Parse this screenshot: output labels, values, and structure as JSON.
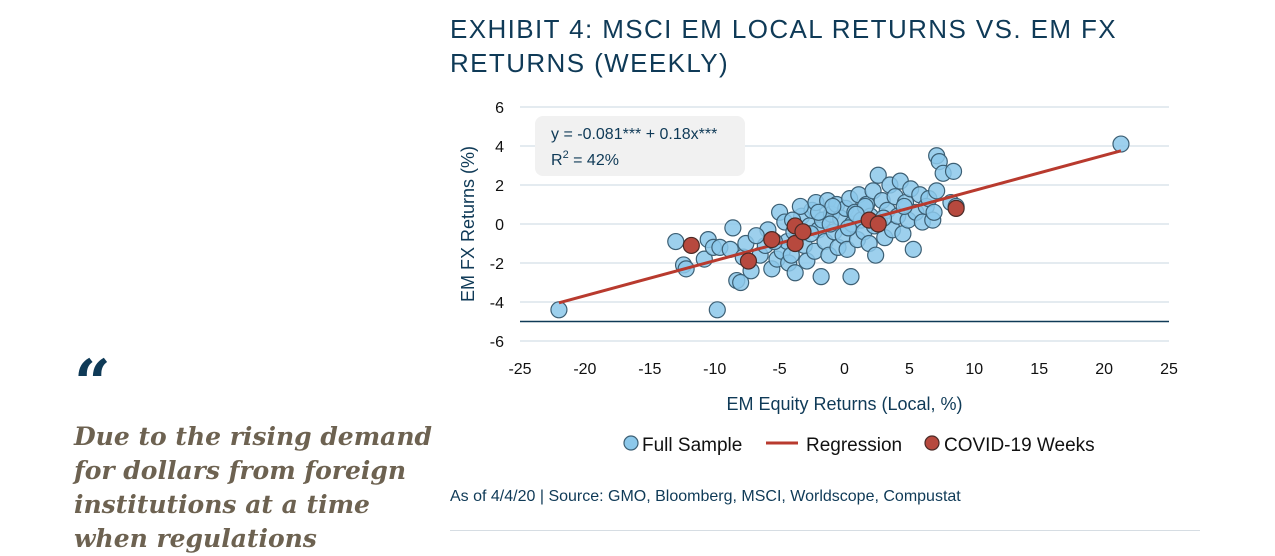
{
  "quote": {
    "mark": "“",
    "text": "Due to the rising demand for dollars from foreign institutions at a time when regulations"
  },
  "exhibit": {
    "title": "EXHIBIT 4: MSCI EM LOCAL RETURNS VS. EM FX RETURNS (WEEKLY)"
  },
  "source_note": "As of 4/4/20 | Source: GMO, Bloomberg, MSCI, Worldscope, Compustat",
  "chart_data": {
    "type": "scatter",
    "xlabel": "EM Equity Returns (Local, %)",
    "ylabel": "EM FX Returns (%)",
    "xlim": [
      -25,
      25
    ],
    "ylim": [
      -6,
      6
    ],
    "xticks": [
      -25,
      -20,
      -15,
      -10,
      -5,
      0,
      5,
      10,
      15,
      20,
      25
    ],
    "yticks": [
      -6,
      -4,
      -2,
      0,
      2,
      4,
      6
    ],
    "grid": "horizontal",
    "legend_position": "bottom",
    "annotation": {
      "equation": "y = -0.081*** + 0.18x***",
      "r2_prefix": "R",
      "r2_sup": "2",
      "r2_value": " = 42%"
    },
    "regression": {
      "intercept": -0.081,
      "slope": 0.18,
      "x_range": [
        -22,
        21.3
      ]
    },
    "series": [
      {
        "name": "Full Sample",
        "color": "#8cc8ea",
        "points": [
          [
            21.3,
            4.1
          ],
          [
            -22,
            -4.4
          ],
          [
            -9.8,
            -4.4
          ],
          [
            -13,
            -0.9
          ],
          [
            -12.4,
            -2.1
          ],
          [
            -12.2,
            -2.3
          ],
          [
            -10.8,
            -1.8
          ],
          [
            -10.5,
            -0.8
          ],
          [
            -10.1,
            -1.2
          ],
          [
            -9.6,
            -1.2
          ],
          [
            -8.8,
            -1.3
          ],
          [
            -8.6,
            -0.2
          ],
          [
            -8.3,
            -2.9
          ],
          [
            -8,
            -3
          ],
          [
            -7.8,
            -1.7
          ],
          [
            -7.6,
            -1.0
          ],
          [
            -7.2,
            -2.4
          ],
          [
            -6.5,
            -1.6
          ],
          [
            -6.1,
            -1.1
          ],
          [
            -5.9,
            -0.3
          ],
          [
            -5.6,
            -2.3
          ],
          [
            -5.2,
            -1.8
          ],
          [
            -5.0,
            0.6
          ],
          [
            -4.8,
            -1.4
          ],
          [
            -4.6,
            0.1
          ],
          [
            -4.4,
            -0.9
          ],
          [
            -4.3,
            -2.0
          ],
          [
            -4.1,
            -1.6
          ],
          [
            -3.8,
            -2.5
          ],
          [
            -3.6,
            -0.6
          ],
          [
            -3.3,
            0.4
          ],
          [
            -3.1,
            -1.1
          ],
          [
            -2.9,
            -1.9
          ],
          [
            -2.7,
            -0.1
          ],
          [
            -2.5,
            0.7
          ],
          [
            -2.3,
            -1.4
          ],
          [
            -2.2,
            1.1
          ],
          [
            -2.0,
            -0.3
          ],
          [
            -1.8,
            -2.7
          ],
          [
            -1.7,
            0.2
          ],
          [
            -1.5,
            -0.9
          ],
          [
            -1.3,
            1.2
          ],
          [
            -1.2,
            -1.6
          ],
          [
            -1.0,
            0.5
          ],
          [
            -0.8,
            -0.4
          ],
          [
            -0.6,
            1.0
          ],
          [
            -0.5,
            -1.2
          ],
          [
            -0.3,
            0.3
          ],
          [
            -0.1,
            -0.6
          ],
          [
            0.1,
            0.8
          ],
          [
            0.2,
            -1.3
          ],
          [
            0.4,
            1.3
          ],
          [
            0.5,
            -2.7
          ],
          [
            0.6,
            0.0
          ],
          [
            0.8,
            0.6
          ],
          [
            1.0,
            -0.8
          ],
          [
            1.1,
            1.5
          ],
          [
            1.3,
            0.2
          ],
          [
            1.5,
            -0.4
          ],
          [
            1.7,
            1.0
          ],
          [
            1.9,
            -1.0
          ],
          [
            2.0,
            0.4
          ],
          [
            2.2,
            1.7
          ],
          [
            2.4,
            -1.6
          ],
          [
            2.6,
            2.5
          ],
          [
            2.7,
            0.1
          ],
          [
            2.9,
            1.2
          ],
          [
            3.1,
            -0.7
          ],
          [
            3.3,
            0.7
          ],
          [
            3.5,
            2.0
          ],
          [
            3.7,
            -0.3
          ],
          [
            3.9,
            1.4
          ],
          [
            4.1,
            0.4
          ],
          [
            4.3,
            2.2
          ],
          [
            4.5,
            -0.5
          ],
          [
            4.7,
            1.1
          ],
          [
            4.9,
            0.2
          ],
          [
            5.1,
            1.8
          ],
          [
            5.3,
            -1.3
          ],
          [
            5.5,
            0.6
          ],
          [
            5.8,
            1.5
          ],
          [
            6.0,
            0.1
          ],
          [
            6.3,
            0.9
          ],
          [
            6.5,
            1.3
          ],
          [
            6.8,
            0.2
          ],
          [
            7.1,
            1.7
          ],
          [
            7.1,
            3.5
          ],
          [
            7.3,
            3.2
          ],
          [
            7.6,
            2.6
          ],
          [
            8.4,
            2.7
          ],
          [
            8.2,
            1.1
          ],
          [
            8.6,
            0.9
          ],
          [
            6.9,
            0.6
          ],
          [
            -3.4,
            0.9
          ],
          [
            -4.0,
            0.2
          ],
          [
            -2.6,
            -0.5
          ],
          [
            -1.1,
            0.0
          ],
          [
            0.3,
            -0.2
          ],
          [
            1.6,
            0.9
          ],
          [
            3.0,
            0.3
          ],
          [
            -6.8,
            -0.6
          ],
          [
            -5.4,
            -0.9
          ],
          [
            -0.9,
            0.9
          ],
          [
            2.3,
            -0.1
          ],
          [
            4.6,
            0.9
          ],
          [
            -2.0,
            0.6
          ],
          [
            0.9,
            0.5
          ],
          [
            -3.9,
            -0.4
          ]
        ]
      },
      {
        "name": "Regression",
        "color": "#b83a2e"
      },
      {
        "name": "COVID-19  Weeks",
        "color": "#b7493e",
        "points": [
          [
            -11.8,
            -1.1
          ],
          [
            -7.4,
            -1.9
          ],
          [
            -5.6,
            -0.8
          ],
          [
            -3.8,
            -1.0
          ],
          [
            -3.8,
            -0.1
          ],
          [
            -3.2,
            -0.4
          ],
          [
            1.9,
            0.2
          ],
          [
            2.6,
            0.0
          ],
          [
            8.6,
            0.8
          ]
        ]
      }
    ]
  }
}
